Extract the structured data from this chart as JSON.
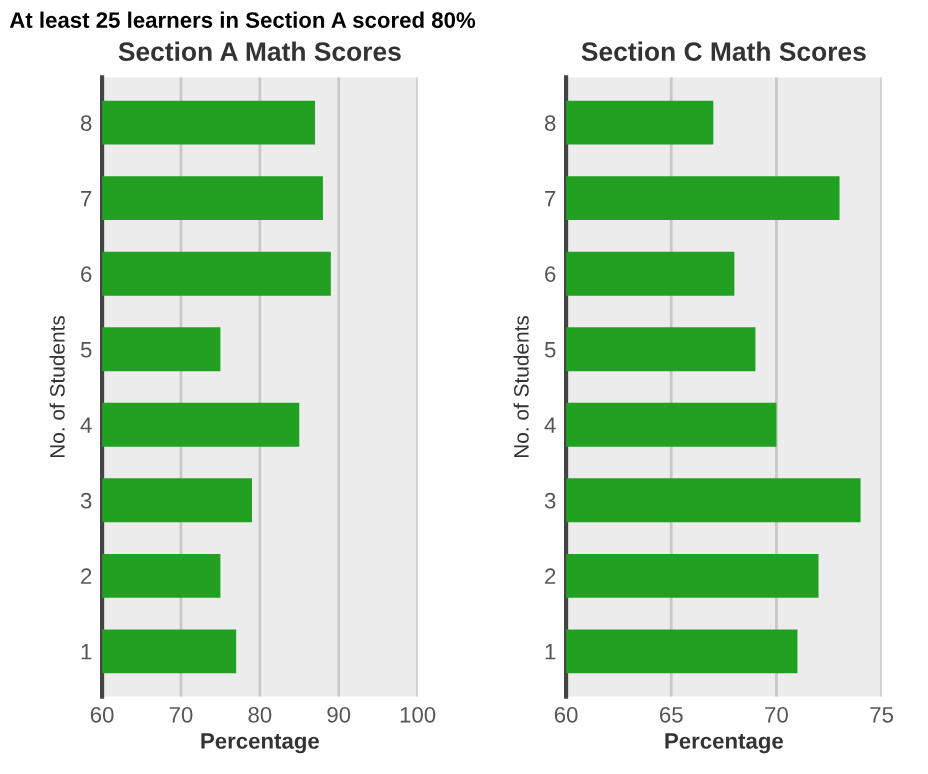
{
  "chart_data": [
    {
      "type": "bar",
      "orientation": "horizontal",
      "title": "Section A Math Scores",
      "xlabel": "Percentage",
      "ylabel": "No. of Students",
      "annotations": [
        "At least 25 learners in Section A scored 80%"
      ],
      "categories": [
        "8",
        "7",
        "6",
        "5",
        "4",
        "3",
        "2",
        "1"
      ],
      "values": [
        87,
        88,
        89,
        75,
        85,
        79,
        75,
        77
      ],
      "color": "#22a022",
      "xlim": [
        60,
        100
      ],
      "xticks": [
        60,
        70,
        80,
        90,
        100
      ],
      "grid": "x"
    },
    {
      "type": "bar",
      "orientation": "horizontal",
      "title": "Section C Math Scores",
      "xlabel": "Percentage",
      "ylabel": "No. of Students",
      "categories": [
        "8",
        "7",
        "6",
        "5",
        "4",
        "3",
        "2",
        "1"
      ],
      "values": [
        67,
        73,
        68,
        69,
        70,
        74,
        72,
        71
      ],
      "color": "#22a022",
      "xlim": [
        60,
        75
      ],
      "xticks": [
        60,
        65,
        70,
        75
      ],
      "grid": "x"
    }
  ]
}
